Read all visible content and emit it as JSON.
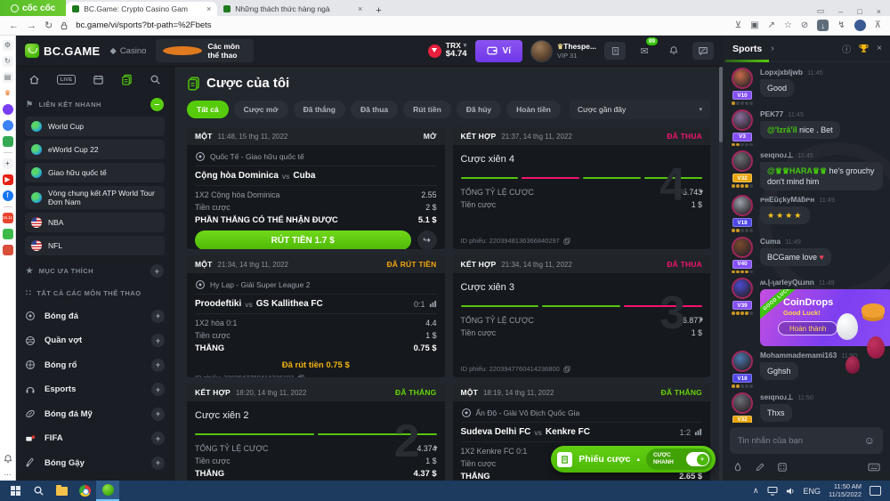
{
  "ui": {
    "vs": "vs",
    "plus": "+",
    "minus": "–",
    "caret": "▾",
    "caret_up": "▴",
    "chev": "›",
    "close": "×",
    "info": "ⓘ",
    "share": "↪",
    "heart": "♥",
    "smiley": "☺",
    "star_fav": "★",
    "flagmark": "⚑",
    "grid": "∷",
    "diamond": "◆",
    "crown": "♛",
    "mail": "✉",
    "back": "←",
    "fwd": "→",
    "reload": "↻",
    "min": "–",
    "max": "□",
    "chevup": "∧"
  },
  "browser": {
    "brand": "cốc cốc",
    "tabs": [
      {
        "title": "BC.Game: Crypto Casino Gam",
        "active": true
      },
      {
        "title": "Những thách thức hàng ngà",
        "active": false
      }
    ],
    "url": "bc.game/vi/sports?bt-path=%2Fbets"
  },
  "extbar": {
    "sale_label": "15.11"
  },
  "header": {
    "logo": "BC.GAME",
    "casino": "Casino",
    "sports_tab": "Các môn thể thao",
    "coin_code": "TRX",
    "balance": "$4.74",
    "wallet_label": "Ví",
    "username": "Thespe...",
    "vip": "VIP 31",
    "mail_badge": "99"
  },
  "sidebar": {
    "live_label": "LIVE",
    "quick_title": "LIÊN KẾT NHANH",
    "quick_links": [
      {
        "label": "World Cup",
        "icon": "globe"
      },
      {
        "label": "eWorld Cup 22",
        "icon": "globe"
      },
      {
        "label": "Giao hữu quốc tế",
        "icon": "globe"
      },
      {
        "label": "Vòng chung kết ATP World Tour Đơn Nam",
        "icon": "globe"
      },
      {
        "label": "NBA",
        "icon": "us-flag"
      },
      {
        "label": "NFL",
        "icon": "us-flag"
      }
    ],
    "favorites_title": "MỤC ƯA THÍCH",
    "all_title": "TẤT CẢ CÁC MÔN THỂ THAO",
    "sports": [
      {
        "label": "Bóng đá",
        "icon": "soccer"
      },
      {
        "label": "Quần vợt",
        "icon": "tennis"
      },
      {
        "label": "Bóng rổ",
        "icon": "basketball"
      },
      {
        "label": "Esports",
        "icon": "esports"
      },
      {
        "label": "Bóng đá Mỹ",
        "icon": "am-football"
      },
      {
        "label": "FIFA",
        "icon": "fifa"
      },
      {
        "label": "Bóng Gậy",
        "icon": "cricket"
      }
    ]
  },
  "main": {
    "title": "Cược của tôi",
    "filters": [
      {
        "label": "Tất cả",
        "active": true
      },
      {
        "label": "Cược mở"
      },
      {
        "label": "Đã thắng"
      },
      {
        "label": "Đã thua"
      },
      {
        "label": "Rút tiền"
      },
      {
        "label": "Đã hủy"
      },
      {
        "label": "Hoàn tiền"
      }
    ],
    "sort_label": "Cược gần đây",
    "cards": [
      {
        "type": "single",
        "kind": "MỘT",
        "time": "11:48, 15 thg 11, 2022",
        "status": "MỞ",
        "status_color": "#e9edf1",
        "league": "Quốc Tế - Giao hữu quốc tế",
        "home": "Cộng hòa Dominica",
        "away": "Cuba",
        "rows": [
          {
            "label": "1X2 Cộng hòa Dominica",
            "value": "2.55"
          },
          {
            "label": "Tiền cược",
            "value": "2 $"
          },
          {
            "label": "PHẦN THẮNG CÓ THỂ NHẬN ĐƯỢC",
            "value": "5.1 $",
            "strong": true
          }
        ],
        "cashout": "RÚT TIỀN 1.7 $",
        "ticket_id": "ID phiếu: 220416152570540250"
      },
      {
        "type": "combo",
        "kind": "KẾT HỢP",
        "time": "21:37, 14 thg 11, 2022",
        "status": "ĐÃ THUA",
        "status_color": "#f2136e",
        "title": "Cược xiên 4",
        "ghost": "4",
        "bars": [
          "#55c40d",
          "#f2136e",
          "#55c40d",
          "#55c40d"
        ],
        "rows": [
          {
            "label": "TỔNG TỶ LỆ CƯỢC",
            "value": "5.743"
          },
          {
            "label": "Tiền cược",
            "value": "1 $"
          }
        ],
        "ticket_id": "ID phiếu: 2203948136366840297"
      },
      {
        "type": "single",
        "kind": "MỘT",
        "time": "21:34, 14 thg 11, 2022",
        "status": "ĐÃ RÚT TIỀN",
        "status_color": "#f2a50c",
        "league": "Hy Lạp - Giải Super League 2",
        "home": "Proodeftiki",
        "away": "GS Kallithea FC",
        "score": "0:1",
        "rows": [
          {
            "label": "1X2 hòa  0:1",
            "value": "4.4"
          },
          {
            "label": "Tiền cược",
            "value": "1 $"
          },
          {
            "label": "THẮNG",
            "value": "0.75 $",
            "strong": true
          }
        ],
        "note": "Đã rút tiền 0.75 $",
        "ticket_id": "ID phiếu: 2203947760414236193"
      },
      {
        "type": "combo",
        "kind": "KẾT HỢP",
        "time": "21:34, 14 thg 11, 2022",
        "status": "ĐÃ THUA",
        "status_color": "#f2136e",
        "title": "Cược xiên 3",
        "ghost": "3",
        "bars": [
          "#55c40d",
          "#55c40d",
          "#f2136e"
        ],
        "rows": [
          {
            "label": "TỔNG TỶ LỆ CƯỢC",
            "value": "6.877"
          },
          {
            "label": "Tiền cược",
            "value": "1 $"
          }
        ],
        "ticket_id": "ID phiếu: 2203947760414236800"
      },
      {
        "type": "combo",
        "kind": "KẾT HỢP",
        "time": "18:20, 14 thg 11, 2022",
        "status": "ĐÃ THẮNG",
        "status_color": "#67d30b",
        "title": "Cược xiên 2",
        "ghost": "2",
        "bars": [
          "#55c40d",
          "#55c40d"
        ],
        "rows": [
          {
            "label": "TỔNG TỶ LỆ CƯỢC",
            "value": "4.374"
          },
          {
            "label": "Tiền cược",
            "value": "1 $"
          },
          {
            "label": "THẮNG",
            "value": "4.37 $",
            "strong": true
          }
        ]
      },
      {
        "type": "single",
        "kind": "MỘT",
        "time": "18:19, 14 thg 11, 2022",
        "status": "ĐÃ THẮNG",
        "status_color": "#67d30b",
        "league": "Ấn Độ - Giải Vô Địch Quốc Gia",
        "home": "Sudeva Delhi FC",
        "away": "Kenkre FC",
        "score": "1:2",
        "rows": [
          {
            "label": "1X2 Kenkre FC  0:1",
            "value": "2.65"
          },
          {
            "label": "Tiền cược",
            "value": "1 $"
          },
          {
            "label": "THẮNG",
            "value": "2.65 $",
            "strong": true
          }
        ]
      }
    ],
    "betslip": {
      "label": "Phiếu cược",
      "quick_label": "CƯỢC NHANH"
    }
  },
  "chat": {
    "tab": "Sports",
    "placeholder": "Tin nhắn của bạn",
    "messages": [
      {
        "user": "Lopxjxbljwb",
        "time": "11:45",
        "vip": "V10",
        "vip_color": "#8450f5",
        "dots": 1,
        "avatar": "#c96a4a",
        "text": "Good"
      },
      {
        "user": "PEK77",
        "time": "11:45",
        "vip": "V3",
        "vip_color": "#8450f5",
        "dots": 2,
        "avatar": "#8a6f9e",
        "mention": "@'Izrā'īl",
        "text": "nice . Bet"
      },
      {
        "user": "seıqnoɹ⊥",
        "time": "11:45",
        "vip": "V32",
        "vip_color": "#e8a40b",
        "dots": 4,
        "avatar": "#6e7078",
        "mention": "@♛♛HARA♛♛",
        "text": "he's grouchy don't mind him"
      },
      {
        "user": "ᴘʜEūçkyMáƃᴘʜ",
        "time": "11:49",
        "vip": "V18",
        "vip_color": "#4f46e5",
        "dots": 2,
        "avatar": "#9aa0a8",
        "gold": true,
        "text": "★★★★"
      },
      {
        "user": "Cuma",
        "time": "11:49",
        "vip": "V40",
        "vip_color": "#8450f5",
        "dots": 4,
        "avatar": "#7a4a2e",
        "text": "BCGame love",
        "heart": true
      },
      {
        "user": "ʍ.ɭ-ʅarleyQuɹnn",
        "time": "11:49",
        "vip": "V39",
        "vip_color": "#8450f5",
        "dots": 4,
        "avatar": "#4a4ad0",
        "coindrops": {
          "title": "CoinDrops",
          "subtitle": "Good Luck!",
          "button": "Hoàn thành",
          "ribbon": "GOOD LUCK"
        }
      },
      {
        "user": "Mohammademami163",
        "time": "11:50",
        "vip": "V18",
        "vip_color": "#4f46e5",
        "dots": 2,
        "avatar": "#4a7ab0",
        "text": "Gghsh"
      },
      {
        "user": "seıqnoɹ⊥",
        "time": "11:50",
        "vip": "V32",
        "vip_color": "#e8a40b",
        "dots": 4,
        "avatar": "#6e7078",
        "text": "Thxs"
      }
    ]
  },
  "taskbar": {
    "lang": "ENG",
    "time": "11:50 AM",
    "date": "11/15/2022"
  }
}
